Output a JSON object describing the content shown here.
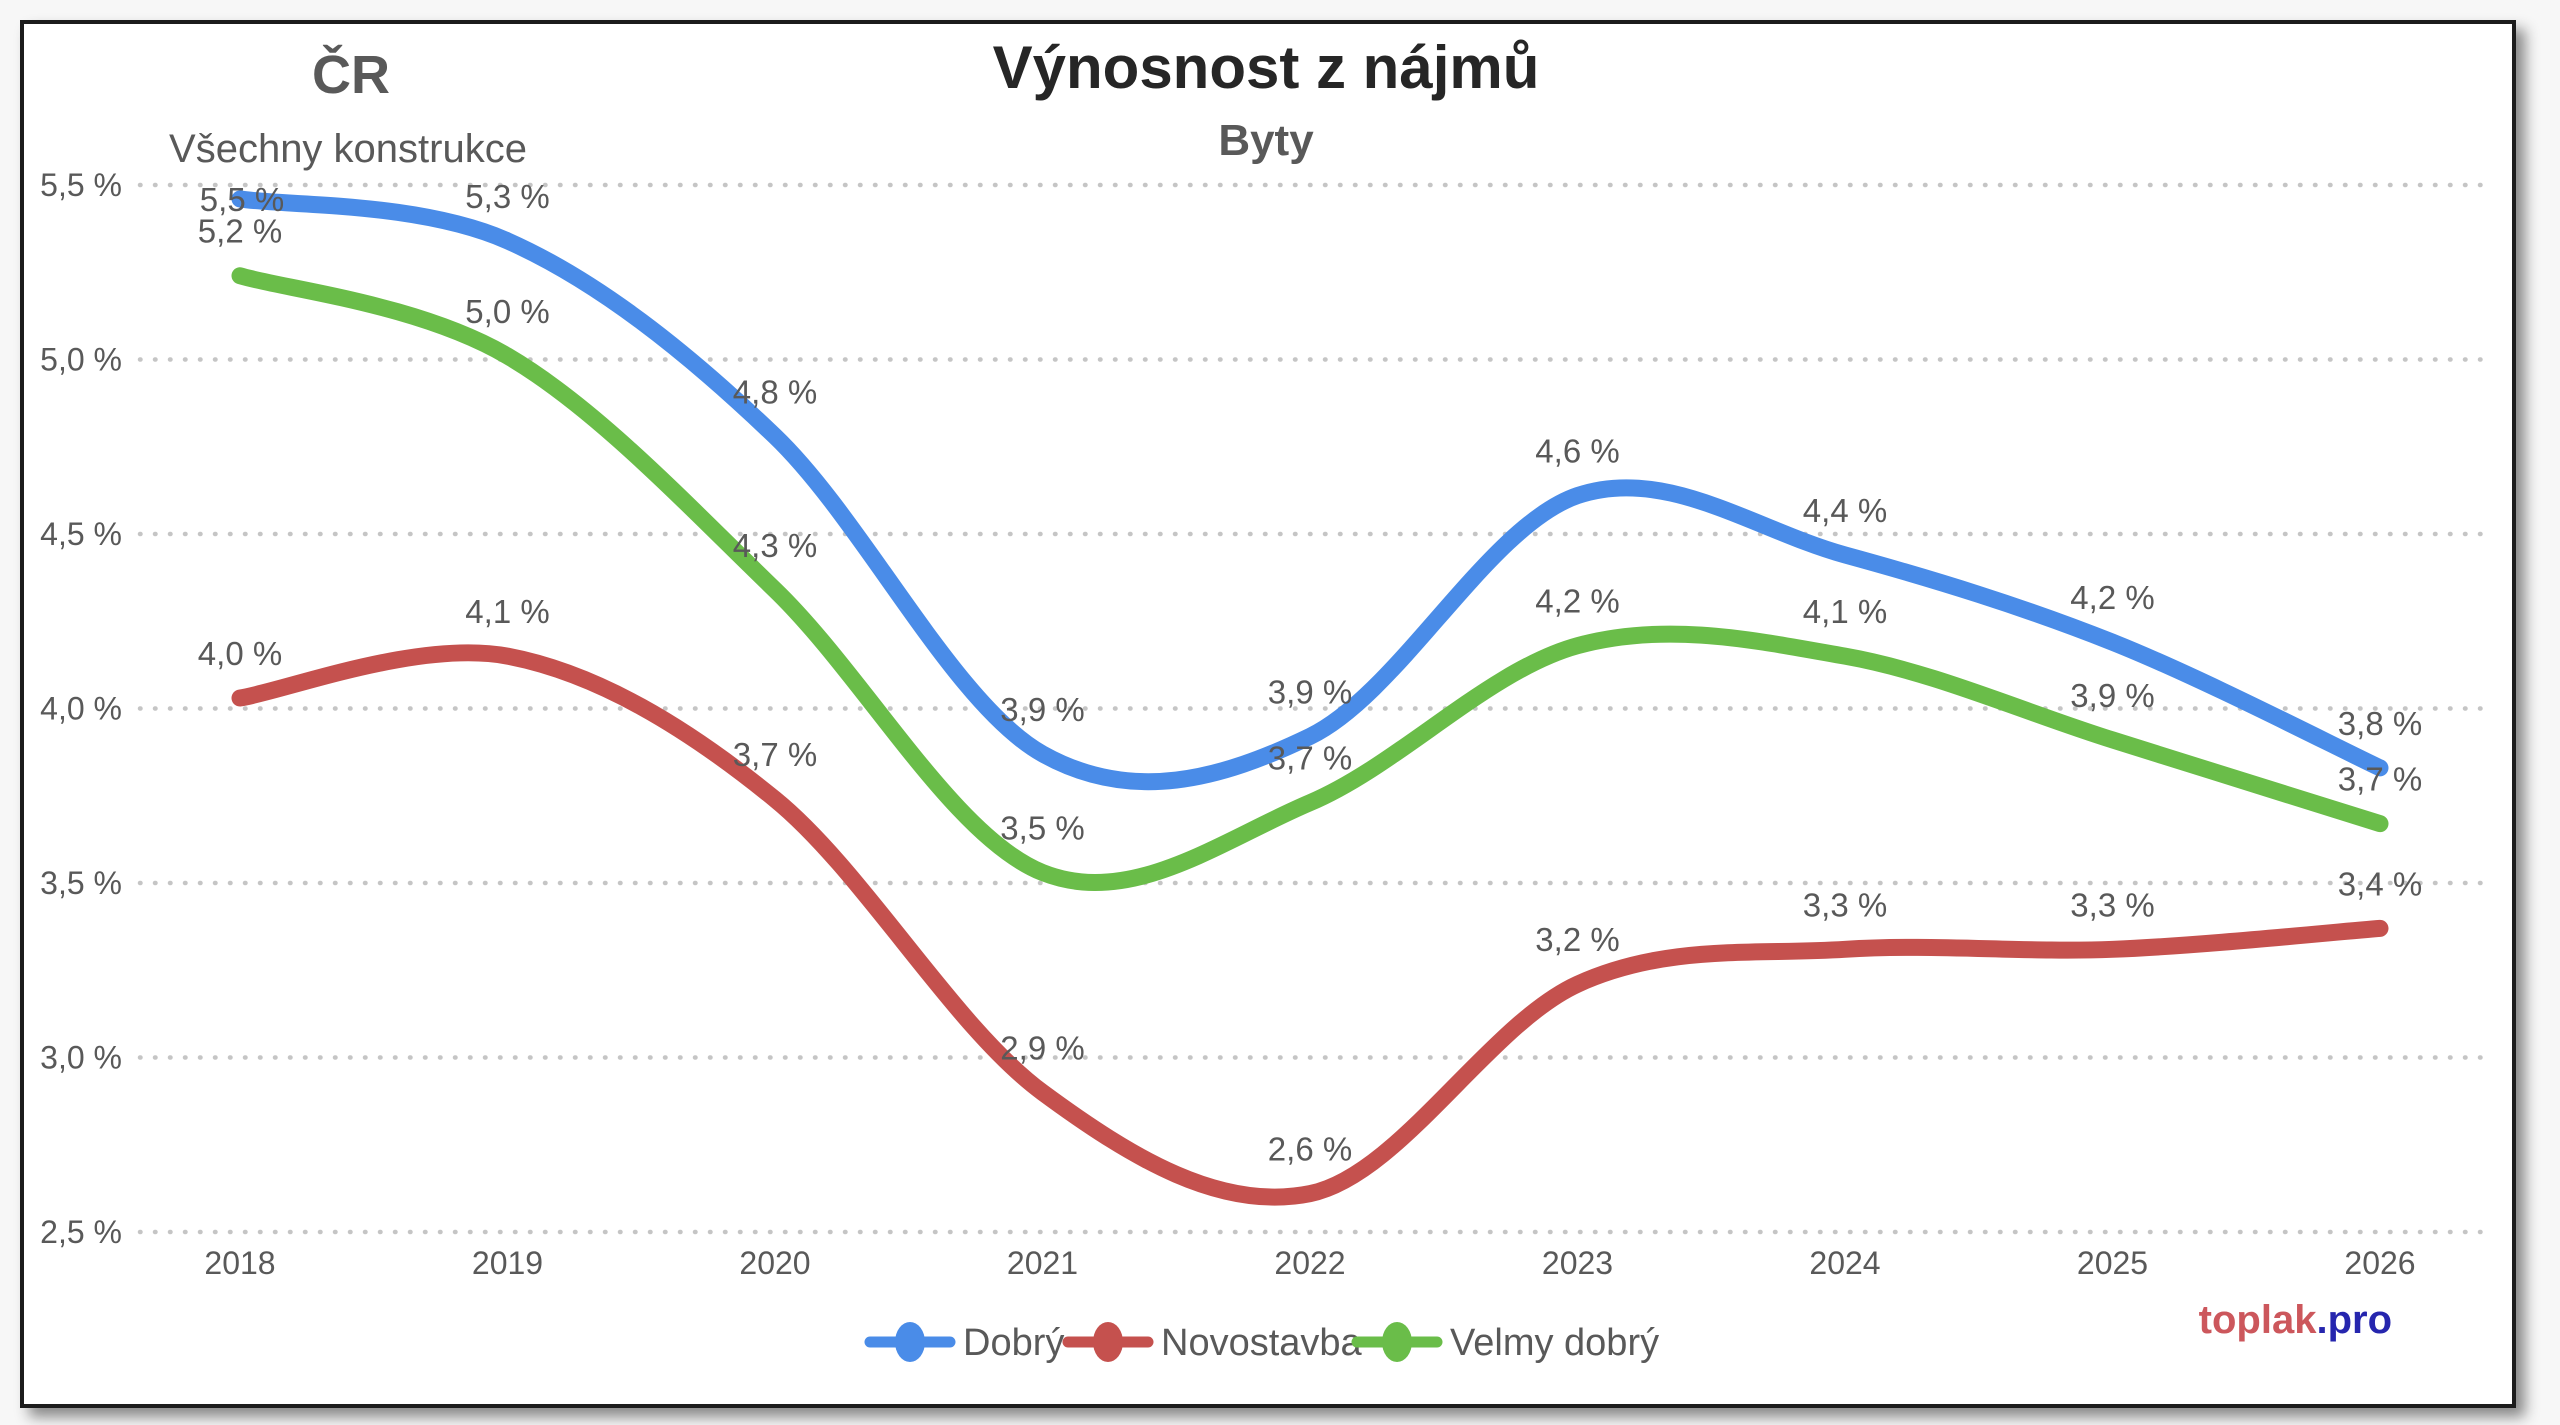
{
  "header": {
    "region": "ČR",
    "region_sub": "Všechny konstrukce",
    "title": "Výnosnost z nájmů",
    "subtitle": "Byty"
  },
  "branding": {
    "left": "toplak",
    "right": ".pro",
    "left_color": "#CC575C",
    "right_color": "#2626AE"
  },
  "chart_data": {
    "type": "line",
    "title": "Výnosnost z nájmů",
    "subtitle": "Byty",
    "region_label": "ČR",
    "region_sublabel": "Všechny konstrukce",
    "x": [
      "2018",
      "2019",
      "2020",
      "2021",
      "2022",
      "2023",
      "2024",
      "2025",
      "2026"
    ],
    "y_ticks": [
      "5,5 %",
      "5,0 %",
      "4,5 %",
      "4,0 %",
      "3,5 %",
      "3,0 %",
      "2,5 %"
    ],
    "y_tick_values": [
      5.5,
      5.0,
      4.5,
      4.0,
      3.5,
      3.0,
      2.5
    ],
    "ylim": [
      2.5,
      5.5
    ],
    "grid": "dotted-horizontal",
    "legend_position": "bottom",
    "series": [
      {
        "name": "Dobrý",
        "color": "#4A8CE8",
        "values": [
          5.5,
          5.3,
          4.8,
          3.9,
          3.9,
          4.6,
          4.4,
          4.2,
          3.8
        ],
        "plot_values": [
          5.46,
          5.34,
          4.78,
          3.87,
          3.92,
          4.61,
          4.44,
          4.19,
          3.83
        ],
        "labels": [
          "5,5 %",
          "5,3 %",
          "4,8 %",
          "3,9 %",
          "3,9 %",
          "4,6 %",
          "4,4 %",
          "4,2 %",
          "3,8 %"
        ]
      },
      {
        "name": "Novostavba",
        "color": "#C5514E",
        "values": [
          4.0,
          4.1,
          3.7,
          2.9,
          2.6,
          3.2,
          3.3,
          3.3,
          3.4
        ],
        "plot_values": [
          4.03,
          4.15,
          3.74,
          2.9,
          2.61,
          3.21,
          3.31,
          3.31,
          3.37
        ],
        "labels": [
          "4,0 %",
          "4,1 %",
          "3,7 %",
          "2,9 %",
          "2,6 %",
          "3,2 %",
          "3,3 %",
          "3,3 %",
          "3,4 %"
        ]
      },
      {
        "name": "Velmy dobrý",
        "color": "#6ABD49",
        "values": [
          5.2,
          5.0,
          4.3,
          3.5,
          3.7,
          4.2,
          4.1,
          3.9,
          3.7
        ],
        "plot_values": [
          5.24,
          5.01,
          4.34,
          3.53,
          3.73,
          4.18,
          4.15,
          3.91,
          3.67
        ],
        "labels": [
          "5,2 %",
          "5,0 %",
          "4,3 %",
          "3,5 %",
          "3,7 %",
          "4,2 %",
          "4,1 %",
          "3,9 %",
          "3,7 %"
        ]
      }
    ]
  }
}
